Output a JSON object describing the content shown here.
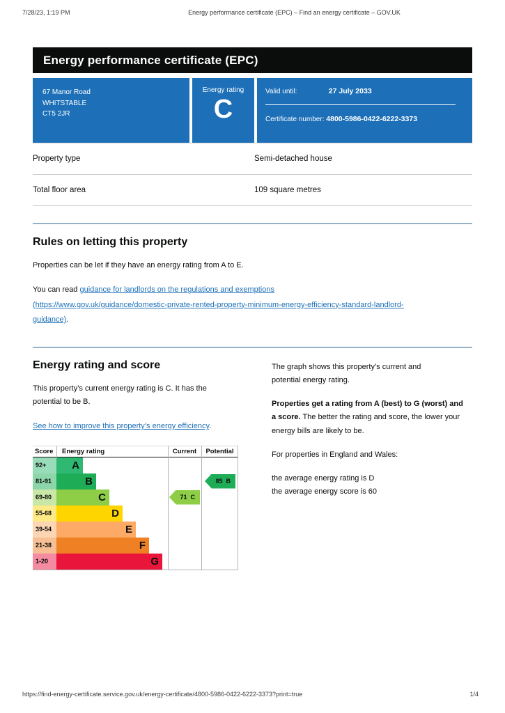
{
  "meta": {
    "datetime": "7/28/23, 1:19 PM",
    "doc_title": "Energy performance certificate (EPC) – Find an energy certificate – GOV.UK",
    "footer_url": "https://find-energy-certificate.service.gov.uk/energy-certificate/4800-5986-0422-6222-3373?print=true",
    "page_indicator": "1/4"
  },
  "certificate": {
    "title": "Energy performance certificate (EPC)",
    "address_lines": [
      "67 Manor Road",
      "WHITSTABLE",
      "CT5 2JR"
    ],
    "energy_rating_label": "Energy rating",
    "energy_rating": "C",
    "valid_until_label": "Valid until:",
    "valid_until": "27 July 2033",
    "certificate_number_label": "Certificate number:",
    "certificate_number": "4800-5986-0422-6222-3373",
    "box_color": "#1d70b8"
  },
  "property": {
    "rows": [
      {
        "label": "Property type",
        "value": "Semi-detached house"
      },
      {
        "label": "Total floor area",
        "value": "109 square metres"
      }
    ]
  },
  "rules": {
    "heading": "Rules on letting this property",
    "paragraph": "Properties can be let if they have an energy rating from A to E.",
    "read_prefix": "You can read ",
    "link_text": "guidance for landlords on the regulations and exemptions",
    "link_url_line1": "(https://www.gov.uk/guidance/domestic-private-rented-property-minimum-energy-efficiency-standard-landlord-",
    "link_url_line2": "guidance)",
    "suffix": "."
  },
  "rating_section": {
    "heading": "Energy rating and score",
    "summary": "This property’s current energy rating is C. It has the potential to be B.",
    "improve_link": "See how to improve this property’s energy efficiency",
    "improve_suffix": ".",
    "right": {
      "p1_line1": "The graph shows this property’s current and",
      "p1_line2": "potential energy rating.",
      "p2_bold": "Properties get a rating from A (best) to G (worst) and a score.",
      "p2_rest": " The better the rating and score, the lower your energy bills are likely to be.",
      "p3": "For properties in England and Wales:",
      "p4a": "the average energy rating is D",
      "p4b": "the average energy score is 60"
    }
  },
  "chart_data": {
    "type": "bar",
    "title": "Energy rating and score graph",
    "columns": [
      "Score",
      "Energy rating",
      "Current",
      "Potential"
    ],
    "bands": [
      {
        "score": "92+",
        "letter": "A",
        "color": "#2eb872",
        "tint": "#98dcba"
      },
      {
        "score": "81-91",
        "letter": "B",
        "color": "#1ead56",
        "tint": "#8cd6a9"
      },
      {
        "score": "69-80",
        "letter": "C",
        "color": "#8dce46",
        "tint": "#c9e7a6"
      },
      {
        "score": "55-68",
        "letter": "D",
        "color": "#ffd500",
        "tint": "#ffea85"
      },
      {
        "score": "39-54",
        "letter": "E",
        "color": "#fcaa65",
        "tint": "#fdd5b3"
      },
      {
        "score": "21-38",
        "letter": "F",
        "color": "#ef8023",
        "tint": "#f7c094"
      },
      {
        "score": "1-20",
        "letter": "G",
        "color": "#e9153b",
        "tint": "#f48ba0"
      }
    ],
    "current": {
      "score": 71,
      "band": "C",
      "color": "#8dce46"
    },
    "potential": {
      "score": 85,
      "band": "B",
      "color": "#1ead56"
    }
  }
}
